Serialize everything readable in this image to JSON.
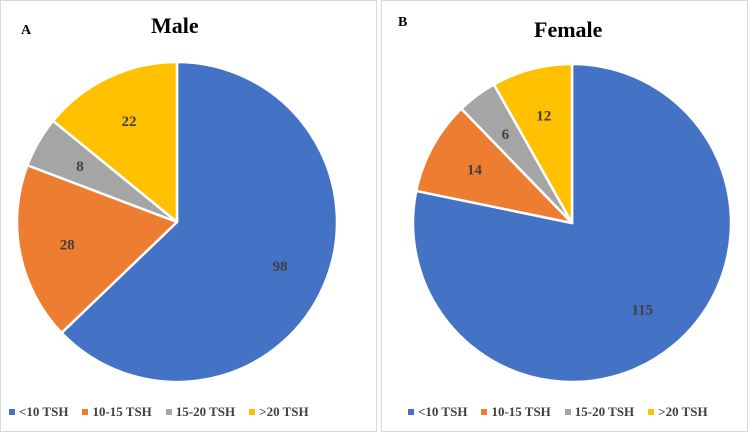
{
  "chart_data": [
    {
      "type": "pie",
      "panel_label": "A",
      "title": "Male",
      "categories": [
        "<10 TSH",
        "10-15 TSH",
        "15-20 TSH",
        ">20 TSH"
      ],
      "values": [
        98,
        28,
        8,
        22
      ],
      "data_labels": [
        "98",
        "28",
        "8",
        "22"
      ],
      "colors": [
        "#4472C4",
        "#ED7D31",
        "#A5A5A5",
        "#FFC000"
      ],
      "legend_position": "bottom"
    },
    {
      "type": "pie",
      "panel_label": "B",
      "title": "Female",
      "categories": [
        "<10 TSH",
        "10-15 TSH",
        "15-20 TSH",
        ">20 TSH"
      ],
      "values": [
        115,
        14,
        6,
        12
      ],
      "data_labels": [
        "115",
        "14",
        "6",
        "12"
      ],
      "colors": [
        "#4472C4",
        "#ED7D31",
        "#A5A5A5",
        "#FFC000"
      ],
      "legend_position": "bottom"
    }
  ]
}
